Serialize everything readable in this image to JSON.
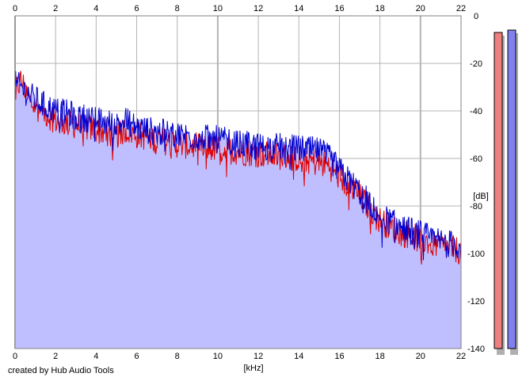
{
  "credit": "created by Hub Audio Tools",
  "colors": {
    "fill": "#bfbfff",
    "left": "#e00000",
    "right": "#0000d0",
    "meter_left": "#f08080",
    "meter_right": "#8080f0",
    "grid": "#b4b4b4"
  },
  "chart_data": {
    "type": "line",
    "title": "",
    "xlabel": "[kHz]",
    "ylabel": "[dB]",
    "xlim": [
      0,
      22
    ],
    "ylim": [
      -140,
      0
    ],
    "x_ticks": [
      0,
      2,
      4,
      6,
      8,
      10,
      12,
      14,
      16,
      18,
      20,
      22
    ],
    "y_ticks": [
      0,
      -20,
      -40,
      -60,
      -80,
      -100,
      -120,
      -140
    ],
    "grid": true,
    "series": [
      {
        "color": "red",
        "points": [
          [
            0,
            -32
          ],
          [
            0.3,
            -27
          ],
          [
            0.8,
            -37
          ],
          [
            1.5,
            -41
          ],
          [
            2,
            -44
          ],
          [
            3,
            -46
          ],
          [
            4,
            -48
          ],
          [
            5,
            -50
          ],
          [
            5.5,
            -48
          ],
          [
            6,
            -50
          ],
          [
            7,
            -52
          ],
          [
            8,
            -54
          ],
          [
            9,
            -55
          ],
          [
            10,
            -56
          ],
          [
            11,
            -57
          ],
          [
            12,
            -58
          ],
          [
            13,
            -59
          ],
          [
            14,
            -60
          ],
          [
            15,
            -62
          ],
          [
            15.5,
            -63
          ],
          [
            16,
            -68
          ],
          [
            17,
            -76
          ],
          [
            18,
            -86
          ],
          [
            19,
            -91
          ],
          [
            20,
            -94
          ],
          [
            21,
            -97
          ],
          [
            22,
            -99
          ]
        ]
      },
      {
        "color": "blue",
        "points": [
          [
            0,
            -29
          ],
          [
            0.3,
            -30
          ],
          [
            0.8,
            -34
          ],
          [
            1.5,
            -38
          ],
          [
            2,
            -40
          ],
          [
            3,
            -42
          ],
          [
            4,
            -44
          ],
          [
            5,
            -46
          ],
          [
            5.5,
            -44
          ],
          [
            6,
            -47
          ],
          [
            7,
            -49
          ],
          [
            8,
            -50
          ],
          [
            9,
            -51
          ],
          [
            10,
            -52
          ],
          [
            11,
            -54
          ],
          [
            12,
            -55
          ],
          [
            13,
            -55
          ],
          [
            14,
            -56
          ],
          [
            15,
            -57
          ],
          [
            15.5,
            -60
          ],
          [
            16,
            -65
          ],
          [
            17,
            -74
          ],
          [
            18,
            -84
          ],
          [
            19,
            -89
          ],
          [
            20,
            -92
          ],
          [
            21,
            -95
          ],
          [
            22,
            -97
          ]
        ]
      }
    ]
  },
  "level_meters": [
    {
      "channel": "left",
      "level_db": -7
    },
    {
      "channel": "right",
      "level_db": -6
    }
  ]
}
